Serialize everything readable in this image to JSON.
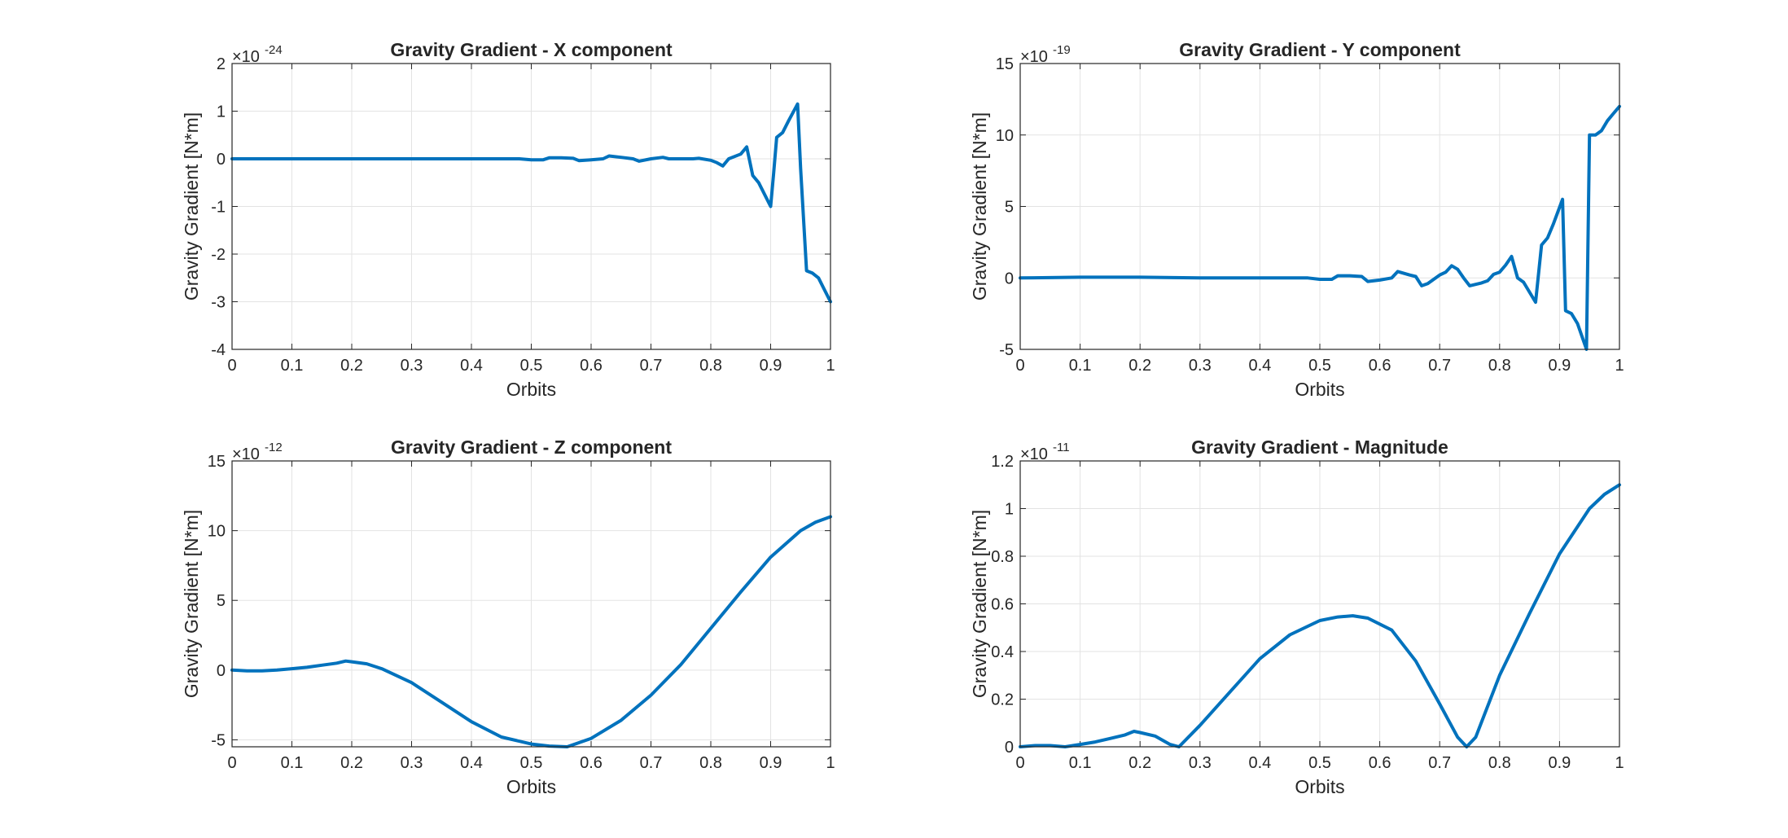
{
  "figure": {
    "background": "#ffffff",
    "line_color": "#0072BD",
    "grid_color": "#e3e3e3",
    "axes_color": "#262626"
  },
  "chart_data": [
    {
      "id": "x",
      "type": "line",
      "title": "Gravity Gradient - X component",
      "xlabel": "Orbits",
      "ylabel": "Gravity Gradient [N*m]",
      "exponent_base": "×10",
      "exponent_power": "-24",
      "xlim": [
        0,
        1
      ],
      "ylim": [
        -4,
        2
      ],
      "xticks": [
        0,
        0.1,
        0.2,
        0.3,
        0.4,
        0.5,
        0.6,
        0.7,
        0.8,
        0.9,
        1
      ],
      "xtick_labels": [
        "0",
        "0.1",
        "0.2",
        "0.3",
        "0.4",
        "0.5",
        "0.6",
        "0.7",
        "0.8",
        "0.9",
        "1"
      ],
      "yticks": [
        -4,
        -3,
        -2,
        -1,
        0,
        1,
        2
      ],
      "ytick_labels": [
        "-4",
        "-3",
        "-2",
        "-1",
        "0",
        "1",
        "2"
      ],
      "grid": true,
      "series": [
        {
          "x": [
            0,
            0.1,
            0.2,
            0.3,
            0.4,
            0.48,
            0.5,
            0.52,
            0.53,
            0.55,
            0.57,
            0.58,
            0.6,
            0.62,
            0.63,
            0.65,
            0.67,
            0.68,
            0.7,
            0.72,
            0.73,
            0.75,
            0.77,
            0.78,
            0.8,
            0.81,
            0.82,
            0.83,
            0.85,
            0.86,
            0.87,
            0.88,
            0.9,
            0.905,
            0.91,
            0.92,
            0.93,
            0.945,
            0.95,
            0.96,
            0.97,
            0.98,
            0.99,
            1.0
          ],
          "y": [
            0,
            0,
            0,
            0,
            0,
            0,
            -0.02,
            -0.02,
            0.02,
            0.02,
            0.01,
            -0.04,
            -0.02,
            0,
            0.06,
            0.03,
            0.0,
            -0.05,
            0.0,
            0.03,
            0.0,
            0.0,
            0.0,
            0.01,
            -0.03,
            -0.08,
            -0.15,
            0.0,
            0.1,
            0.25,
            -0.35,
            -0.5,
            -1.0,
            -0.3,
            0.45,
            0.55,
            0.8,
            1.15,
            -0.2,
            -2.35,
            -2.4,
            -2.5,
            -2.75,
            -3.0
          ]
        }
      ]
    },
    {
      "id": "y",
      "type": "line",
      "title": "Gravity Gradient - Y component",
      "xlabel": "Orbits",
      "ylabel": "Gravity Gradient [N*m]",
      "exponent_base": "×10",
      "exponent_power": "-19",
      "xlim": [
        0,
        1
      ],
      "ylim": [
        -5,
        15
      ],
      "xticks": [
        0,
        0.1,
        0.2,
        0.3,
        0.4,
        0.5,
        0.6,
        0.7,
        0.8,
        0.9,
        1
      ],
      "xtick_labels": [
        "0",
        "0.1",
        "0.2",
        "0.3",
        "0.4",
        "0.5",
        "0.6",
        "0.7",
        "0.8",
        "0.9",
        "1"
      ],
      "yticks": [
        -5,
        0,
        5,
        10,
        15
      ],
      "ytick_labels": [
        "-5",
        "0",
        "5",
        "10",
        "15"
      ],
      "grid": true,
      "series": [
        {
          "x": [
            0,
            0.1,
            0.2,
            0.3,
            0.4,
            0.48,
            0.5,
            0.52,
            0.53,
            0.55,
            0.57,
            0.58,
            0.6,
            0.62,
            0.63,
            0.65,
            0.66,
            0.67,
            0.68,
            0.7,
            0.71,
            0.72,
            0.73,
            0.74,
            0.75,
            0.77,
            0.78,
            0.79,
            0.8,
            0.81,
            0.82,
            0.83,
            0.84,
            0.86,
            0.87,
            0.88,
            0.89,
            0.905,
            0.91,
            0.92,
            0.93,
            0.945,
            0.95,
            0.96,
            0.97,
            0.98,
            0.99,
            1.0
          ],
          "y": [
            0,
            0.05,
            0.05,
            0.0,
            0.0,
            0.0,
            -0.1,
            -0.1,
            0.15,
            0.15,
            0.1,
            -0.25,
            -0.15,
            0.0,
            0.45,
            0.2,
            0.1,
            -0.55,
            -0.4,
            0.2,
            0.4,
            0.85,
            0.6,
            0.0,
            -0.55,
            -0.35,
            -0.2,
            0.25,
            0.4,
            0.9,
            1.5,
            0.0,
            -0.3,
            -1.7,
            2.3,
            2.8,
            3.8,
            5.5,
            -2.3,
            -2.5,
            -3.2,
            -5.0,
            10.0,
            10.0,
            10.3,
            11.0,
            11.5,
            12.0
          ]
        }
      ]
    },
    {
      "id": "z",
      "type": "line",
      "title": "Gravity Gradient - Z component",
      "xlabel": "Orbits",
      "ylabel": "Gravity Gradient [N*m]",
      "exponent_base": "×10",
      "exponent_power": "-12",
      "xlim": [
        0,
        1
      ],
      "ylim": [
        -5.5,
        15
      ],
      "xticks": [
        0,
        0.1,
        0.2,
        0.3,
        0.4,
        0.5,
        0.6,
        0.7,
        0.8,
        0.9,
        1
      ],
      "xtick_labels": [
        "0",
        "0.1",
        "0.2",
        "0.3",
        "0.4",
        "0.5",
        "0.6",
        "0.7",
        "0.8",
        "0.9",
        "1"
      ],
      "yticks": [
        -5,
        0,
        5,
        10,
        15
      ],
      "ytick_labels": [
        "-5",
        "0",
        "5",
        "10",
        "15"
      ],
      "grid": true,
      "series": [
        {
          "x": [
            0,
            0.025,
            0.05,
            0.075,
            0.1,
            0.125,
            0.15,
            0.175,
            0.19,
            0.2,
            0.225,
            0.25,
            0.3,
            0.35,
            0.4,
            0.45,
            0.5,
            0.53,
            0.56,
            0.6,
            0.65,
            0.7,
            0.75,
            0.8,
            0.85,
            0.9,
            0.95,
            0.975,
            1.0
          ],
          "y": [
            0,
            -0.05,
            -0.05,
            0.0,
            0.1,
            0.2,
            0.35,
            0.5,
            0.65,
            0.6,
            0.45,
            0.1,
            -0.9,
            -2.3,
            -3.7,
            -4.8,
            -5.3,
            -5.45,
            -5.5,
            -4.9,
            -3.6,
            -1.8,
            0.4,
            3.0,
            5.6,
            8.1,
            10.0,
            10.6,
            11.0
          ]
        }
      ]
    },
    {
      "id": "magnitude",
      "type": "line",
      "title": "Gravity Gradient - Magnitude",
      "xlabel": "Orbits",
      "ylabel": "Gravity Gradient [N*m]",
      "exponent_base": "×10",
      "exponent_power": "-11",
      "xlim": [
        0,
        1
      ],
      "ylim": [
        0,
        1.2
      ],
      "xticks": [
        0,
        0.1,
        0.2,
        0.3,
        0.4,
        0.5,
        0.6,
        0.7,
        0.8,
        0.9,
        1
      ],
      "xtick_labels": [
        "0",
        "0.1",
        "0.2",
        "0.3",
        "0.4",
        "0.5",
        "0.6",
        "0.7",
        "0.8",
        "0.9",
        "1"
      ],
      "yticks": [
        0,
        0.2,
        0.4,
        0.6,
        0.8,
        1,
        1.2
      ],
      "ytick_labels": [
        "0",
        "0.2",
        "0.4",
        "0.6",
        "0.8",
        "1",
        "1.2"
      ],
      "grid": true,
      "series": [
        {
          "x": [
            0,
            0.025,
            0.05,
            0.075,
            0.1,
            0.125,
            0.15,
            0.175,
            0.19,
            0.2,
            0.225,
            0.25,
            0.265,
            0.3,
            0.35,
            0.4,
            0.45,
            0.5,
            0.53,
            0.555,
            0.58,
            0.62,
            0.66,
            0.7,
            0.73,
            0.745,
            0.76,
            0.8,
            0.85,
            0.9,
            0.95,
            0.975,
            1.0
          ],
          "y": [
            0,
            0.005,
            0.005,
            0.0,
            0.01,
            0.02,
            0.035,
            0.05,
            0.065,
            0.06,
            0.045,
            0.01,
            0.0,
            0.09,
            0.23,
            0.37,
            0.47,
            0.53,
            0.545,
            0.55,
            0.54,
            0.49,
            0.36,
            0.18,
            0.04,
            0.0,
            0.04,
            0.3,
            0.56,
            0.81,
            1.0,
            1.06,
            1.1
          ]
        }
      ]
    }
  ]
}
